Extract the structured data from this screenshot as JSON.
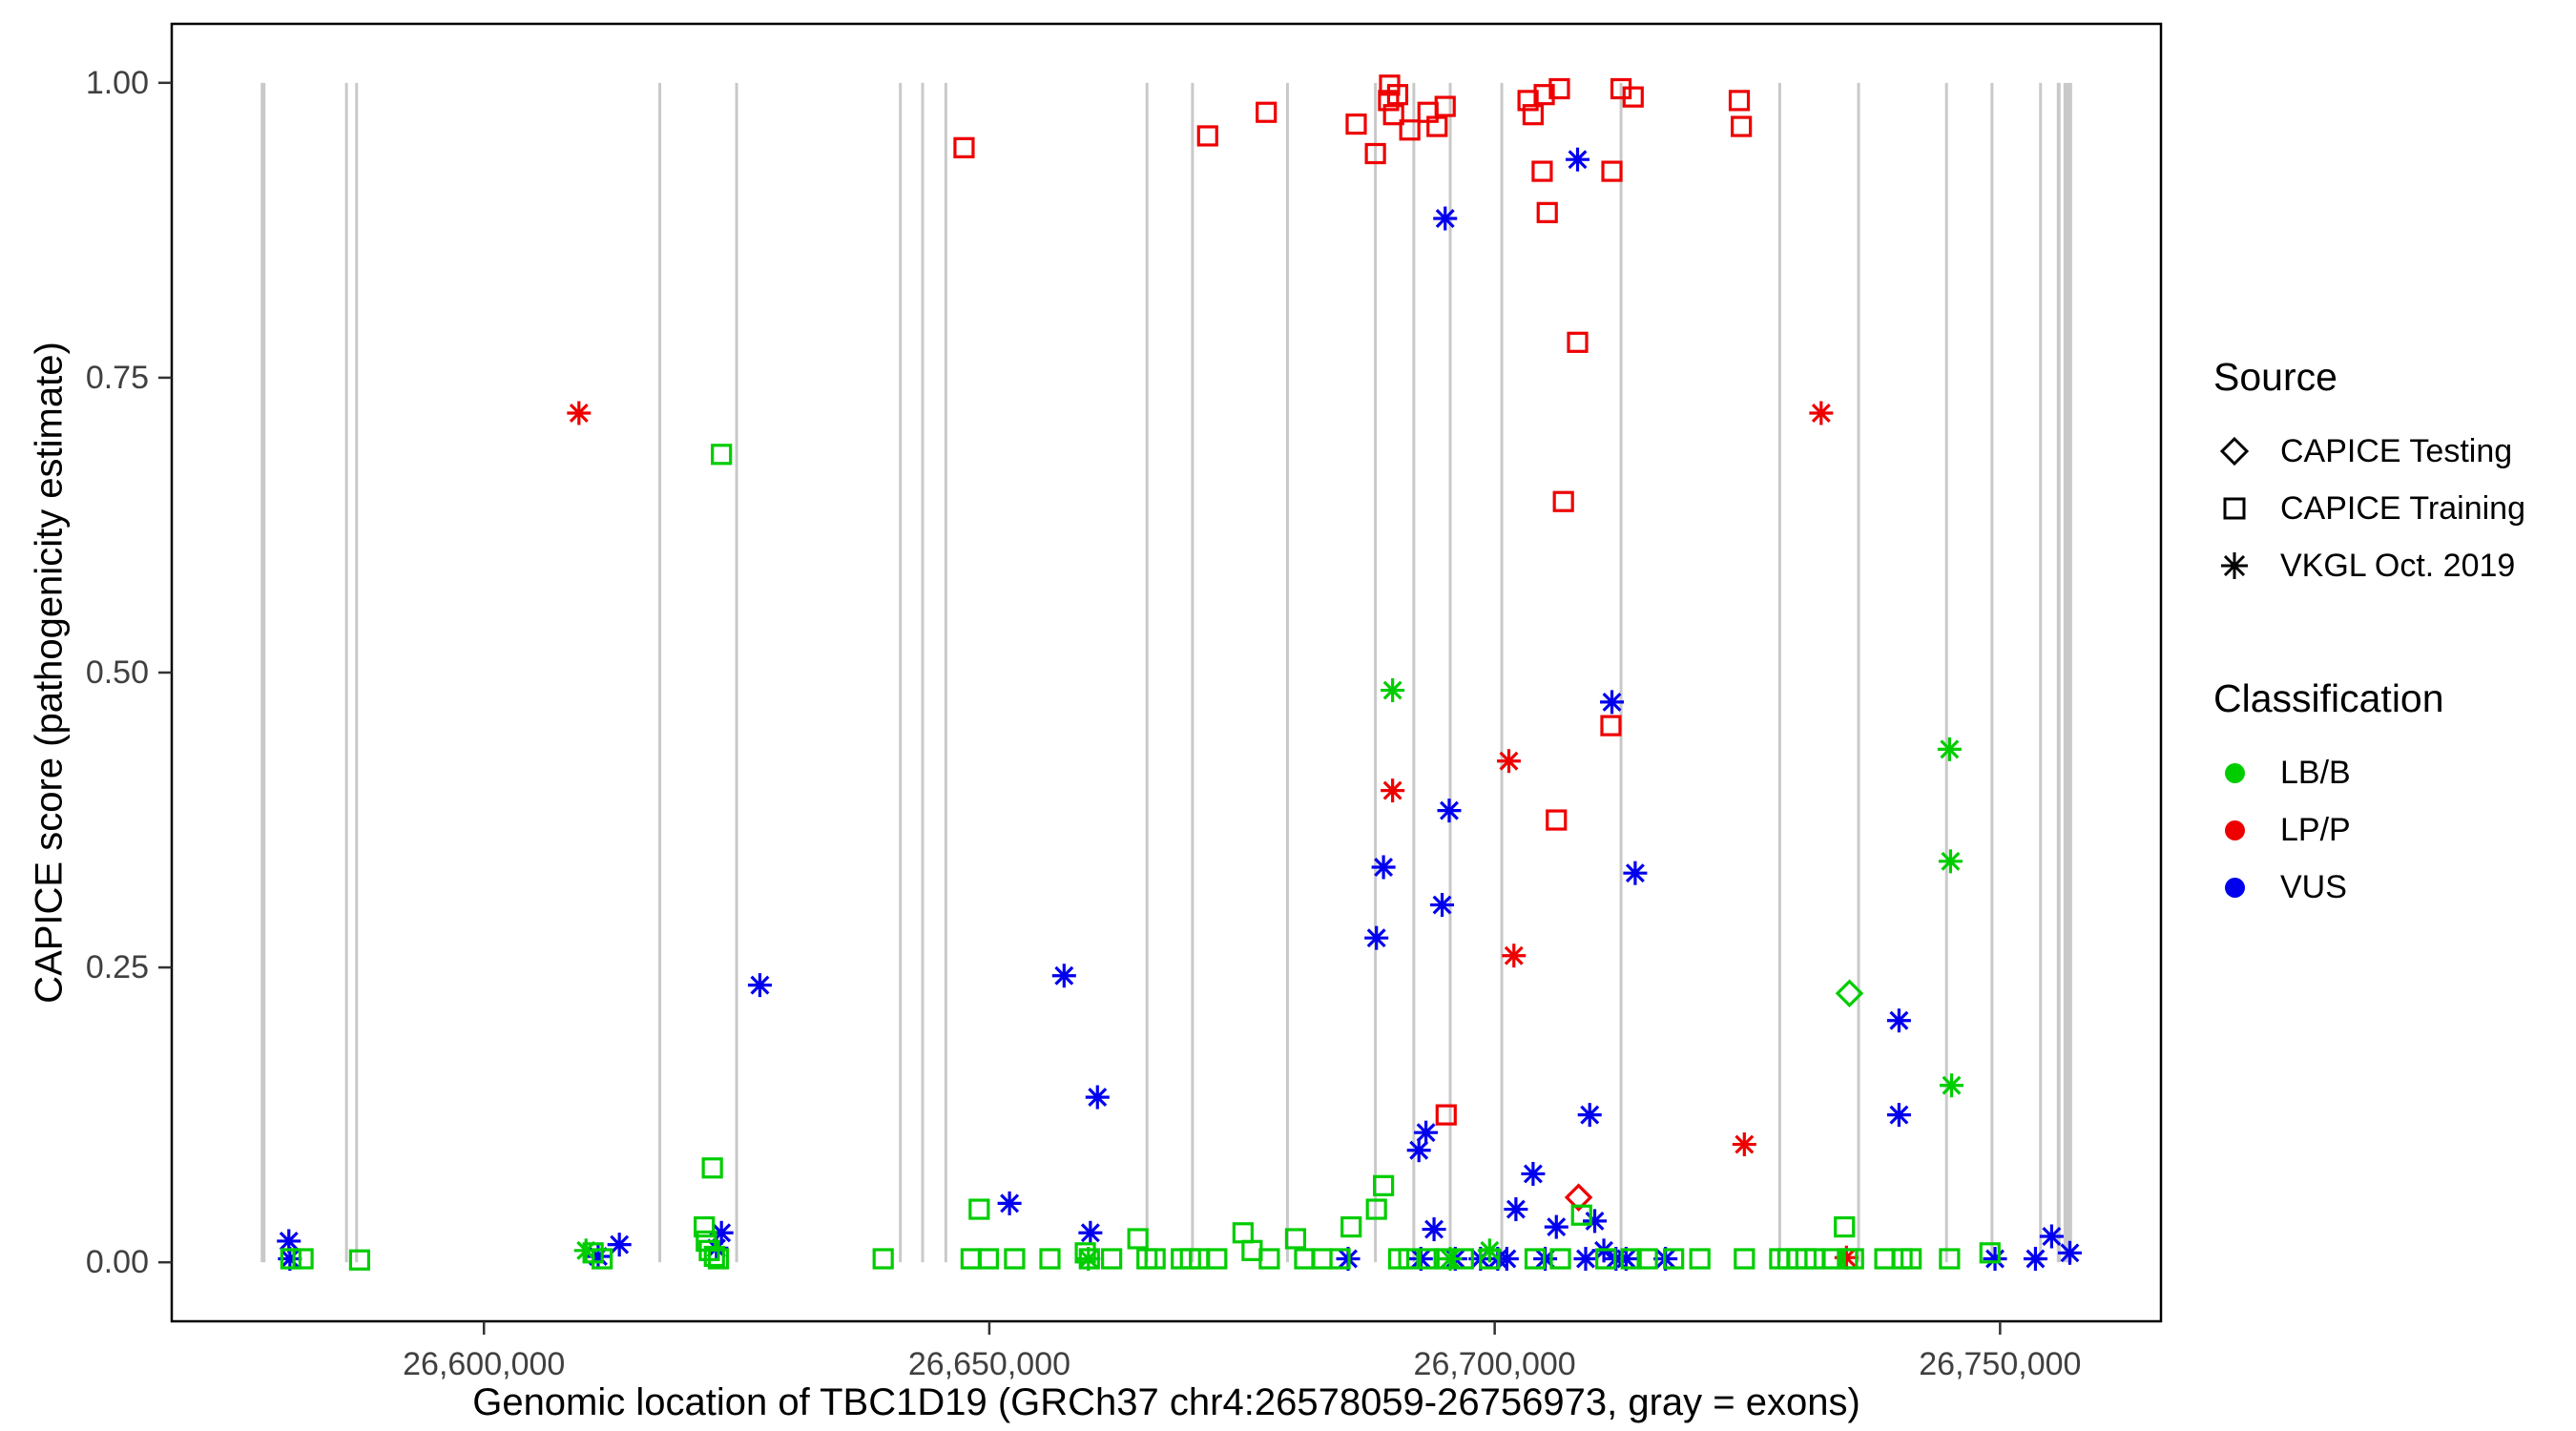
{
  "chart_data": {
    "type": "scatter",
    "title": "",
    "xlabel": "Genomic location of TBC1D19 (GRCh37 chr4:26578059-26756973, gray = exons)",
    "ylabel": "CAPICE score (pathogenicity estimate)",
    "xlim": [
      26569113,
      26765919
    ],
    "ylim": [
      -0.05,
      1.05
    ],
    "gene_region": {
      "chrom": "chr4",
      "start": 26578059,
      "end": 26756973,
      "build": "GRCh37",
      "gene": "TBC1D19"
    },
    "x_ticks": [
      {
        "value": 26600000,
        "label": "26,600,000"
      },
      {
        "value": 26650000,
        "label": "26,650,000"
      },
      {
        "value": 26700000,
        "label": "26,700,000"
      },
      {
        "value": 26750000,
        "label": "26,750,000"
      }
    ],
    "y_ticks": [
      {
        "value": 0.0,
        "label": "0.00"
      },
      {
        "value": 0.25,
        "label": "0.25"
      },
      {
        "value": 0.5,
        "label": "0.50"
      },
      {
        "value": 0.75,
        "label": "0.75"
      },
      {
        "value": 1.0,
        "label": "1.00"
      }
    ],
    "grid": false,
    "legend_position": "right",
    "exon_color": "#c9c9c9",
    "exons": [
      {
        "x": 26578150,
        "w": 5
      },
      {
        "x": 26586400,
        "w": 3
      },
      {
        "x": 26587400,
        "w": 3
      },
      {
        "x": 26617400,
        "w": 3
      },
      {
        "x": 26625000,
        "w": 3
      },
      {
        "x": 26641200,
        "w": 3
      },
      {
        "x": 26643400,
        "w": 3
      },
      {
        "x": 26645700,
        "w": 3
      },
      {
        "x": 26665600,
        "w": 3
      },
      {
        "x": 26670100,
        "w": 3
      },
      {
        "x": 26679500,
        "w": 3
      },
      {
        "x": 26688200,
        "w": 3
      },
      {
        "x": 26692000,
        "w": 3
      },
      {
        "x": 26695600,
        "w": 3
      },
      {
        "x": 26700700,
        "w": 3
      },
      {
        "x": 26712500,
        "w": 3
      },
      {
        "x": 26728200,
        "w": 3
      },
      {
        "x": 26736000,
        "w": 3
      },
      {
        "x": 26744700,
        "w": 3
      },
      {
        "x": 26749200,
        "w": 3
      },
      {
        "x": 26754000,
        "w": 3
      },
      {
        "x": 26755800,
        "w": 4
      },
      {
        "x": 26756700,
        "w": 9
      }
    ],
    "codes": {
      "sq": "CAPICE Training",
      "di": "CAPICE Testing",
      "as": "VKGL Oct. 2019",
      "B": "LB/B",
      "P": "LP/P",
      "V": "VUS"
    },
    "colors": {
      "B": "#00cd00",
      "P": "#ee0000",
      "V": "#0000ee"
    },
    "point_format": [
      "x",
      "y",
      "source_shape",
      "classification"
    ],
    "points": [
      [
        26647500,
        0.945,
        "sq",
        "P"
      ],
      [
        26671600,
        0.955,
        "sq",
        "P"
      ],
      [
        26677400,
        0.975,
        "sq",
        "P"
      ],
      [
        26686300,
        0.965,
        "sq",
        "P"
      ],
      [
        26688200,
        0.94,
        "sq",
        "P"
      ],
      [
        26689500,
        0.985,
        "sq",
        "P"
      ],
      [
        26689600,
        0.998,
        "sq",
        "P"
      ],
      [
        26690400,
        0.99,
        "sq",
        "P"
      ],
      [
        26690000,
        0.973,
        "sq",
        "P"
      ],
      [
        26691600,
        0.96,
        "sq",
        "P"
      ],
      [
        26693400,
        0.975,
        "sq",
        "P"
      ],
      [
        26695100,
        0.98,
        "sq",
        "P"
      ],
      [
        26694300,
        0.963,
        "sq",
        "P"
      ],
      [
        26703300,
        0.985,
        "sq",
        "P"
      ],
      [
        26704900,
        0.99,
        "sq",
        "P"
      ],
      [
        26703800,
        0.973,
        "sq",
        "P"
      ],
      [
        26706400,
        0.995,
        "sq",
        "P"
      ],
      [
        26704700,
        0.925,
        "sq",
        "P"
      ],
      [
        26705200,
        0.89,
        "sq",
        "P"
      ],
      [
        26711600,
        0.925,
        "sq",
        "P"
      ],
      [
        26712500,
        0.995,
        "sq",
        "P"
      ],
      [
        26713700,
        0.988,
        "sq",
        "P"
      ],
      [
        26724200,
        0.985,
        "sq",
        "P"
      ],
      [
        26724400,
        0.963,
        "sq",
        "P"
      ],
      [
        26708200,
        0.78,
        "sq",
        "P"
      ],
      [
        26706800,
        0.645,
        "sq",
        "P"
      ],
      [
        26711500,
        0.455,
        "sq",
        "P"
      ],
      [
        26706100,
        0.375,
        "sq",
        "P"
      ],
      [
        26695200,
        0.125,
        "sq",
        "P"
      ],
      [
        26609400,
        0.72,
        "as",
        "P"
      ],
      [
        26732300,
        0.72,
        "as",
        "P"
      ],
      [
        26689900,
        0.4,
        "as",
        "P"
      ],
      [
        26701400,
        0.425,
        "as",
        "P"
      ],
      [
        26701900,
        0.26,
        "as",
        "P"
      ],
      [
        26724700,
        0.1,
        "as",
        "P"
      ],
      [
        26734800,
        0.004,
        "as",
        "P"
      ],
      [
        26708300,
        0.055,
        "di",
        "P"
      ],
      [
        26695100,
        0.885,
        "as",
        "V"
      ],
      [
        26708200,
        0.935,
        "as",
        "V"
      ],
      [
        26627300,
        0.235,
        "as",
        "V"
      ],
      [
        26657400,
        0.243,
        "as",
        "V"
      ],
      [
        26660700,
        0.14,
        "as",
        "V"
      ],
      [
        26652000,
        0.05,
        "as",
        "V"
      ],
      [
        26689000,
        0.335,
        "as",
        "V"
      ],
      [
        26688300,
        0.275,
        "as",
        "V"
      ],
      [
        26695500,
        0.383,
        "as",
        "V"
      ],
      [
        26694800,
        0.303,
        "as",
        "V"
      ],
      [
        26711600,
        0.475,
        "as",
        "V"
      ],
      [
        26713900,
        0.33,
        "as",
        "V"
      ],
      [
        26709400,
        0.125,
        "as",
        "V"
      ],
      [
        26692500,
        0.095,
        "as",
        "V"
      ],
      [
        26693200,
        0.11,
        "as",
        "V"
      ],
      [
        26703800,
        0.075,
        "as",
        "V"
      ],
      [
        26702100,
        0.045,
        "as",
        "V"
      ],
      [
        26706100,
        0.03,
        "as",
        "V"
      ],
      [
        26709900,
        0.035,
        "as",
        "V"
      ],
      [
        26740000,
        0.205,
        "as",
        "V"
      ],
      [
        26740000,
        0.125,
        "as",
        "V"
      ],
      [
        26580700,
        0.018,
        "as",
        "V"
      ],
      [
        26580800,
        0.003,
        "as",
        "V"
      ],
      [
        26613400,
        0.015,
        "as",
        "V"
      ],
      [
        26623000,
        0.012,
        "as",
        "V"
      ],
      [
        26623500,
        0.025,
        "as",
        "V"
      ],
      [
        26660000,
        0.025,
        "as",
        "V"
      ],
      [
        26755100,
        0.022,
        "as",
        "V"
      ],
      [
        26756900,
        0.008,
        "as",
        "V"
      ],
      [
        26611300,
        0.005,
        "as",
        "V"
      ],
      [
        26685500,
        0.003,
        "as",
        "V"
      ],
      [
        26692700,
        0.003,
        "as",
        "V"
      ],
      [
        26694000,
        0.028,
        "as",
        "V"
      ],
      [
        26696100,
        0.003,
        "as",
        "V"
      ],
      [
        26698600,
        0.003,
        "as",
        "V"
      ],
      [
        26700300,
        0.003,
        "as",
        "V"
      ],
      [
        26701200,
        0.003,
        "as",
        "V"
      ],
      [
        26705000,
        0.003,
        "as",
        "V"
      ],
      [
        26709000,
        0.003,
        "as",
        "V"
      ],
      [
        26710800,
        0.01,
        "as",
        "V"
      ],
      [
        26712000,
        0.003,
        "as",
        "V"
      ],
      [
        26713000,
        0.003,
        "as",
        "V"
      ],
      [
        26716900,
        0.003,
        "as",
        "V"
      ],
      [
        26749500,
        0.003,
        "as",
        "V"
      ],
      [
        26753500,
        0.003,
        "as",
        "V"
      ],
      [
        26623500,
        0.685,
        "sq",
        "B"
      ],
      [
        26622600,
        0.08,
        "sq",
        "B"
      ],
      [
        26621800,
        0.03,
        "sq",
        "B"
      ],
      [
        26622000,
        0.018,
        "sq",
        "B"
      ],
      [
        26622300,
        0.01,
        "sq",
        "B"
      ],
      [
        26622800,
        0.005,
        "sq",
        "B"
      ],
      [
        26623200,
        0.003,
        "sq",
        "B"
      ],
      [
        26580900,
        0.003,
        "sq",
        "B"
      ],
      [
        26582100,
        0.003,
        "sq",
        "B"
      ],
      [
        26587700,
        0.002,
        "sq",
        "B"
      ],
      [
        26610800,
        0.008,
        "sq",
        "B"
      ],
      [
        26611700,
        0.003,
        "sq",
        "B"
      ],
      [
        26639500,
        0.003,
        "sq",
        "B"
      ],
      [
        26648200,
        0.003,
        "sq",
        "B"
      ],
      [
        26649000,
        0.045,
        "sq",
        "B"
      ],
      [
        26649900,
        0.003,
        "sq",
        "B"
      ],
      [
        26652500,
        0.003,
        "sq",
        "B"
      ],
      [
        26656000,
        0.003,
        "sq",
        "B"
      ],
      [
        26659500,
        0.008,
        "sq",
        "B"
      ],
      [
        26659900,
        0.003,
        "sq",
        "B"
      ],
      [
        26662100,
        0.003,
        "sq",
        "B"
      ],
      [
        26664700,
        0.02,
        "sq",
        "B"
      ],
      [
        26665600,
        0.003,
        "sq",
        "B"
      ],
      [
        26666400,
        0.003,
        "sq",
        "B"
      ],
      [
        26669000,
        0.003,
        "sq",
        "B"
      ],
      [
        26669900,
        0.003,
        "sq",
        "B"
      ],
      [
        26670800,
        0.003,
        "sq",
        "B"
      ],
      [
        26672500,
        0.003,
        "sq",
        "B"
      ],
      [
        26675100,
        0.025,
        "sq",
        "B"
      ],
      [
        26676000,
        0.01,
        "sq",
        "B"
      ],
      [
        26677700,
        0.003,
        "sq",
        "B"
      ],
      [
        26680300,
        0.02,
        "sq",
        "B"
      ],
      [
        26681200,
        0.003,
        "sq",
        "B"
      ],
      [
        26682900,
        0.003,
        "sq",
        "B"
      ],
      [
        26684700,
        0.003,
        "sq",
        "B"
      ],
      [
        26689000,
        0.065,
        "sq",
        "B"
      ],
      [
        26688300,
        0.045,
        "sq",
        "B"
      ],
      [
        26685800,
        0.03,
        "sq",
        "B"
      ],
      [
        26690500,
        0.003,
        "sq",
        "B"
      ],
      [
        26691500,
        0.003,
        "sq",
        "B"
      ],
      [
        26693500,
        0.003,
        "sq",
        "B"
      ],
      [
        26695000,
        0.003,
        "sq",
        "B"
      ],
      [
        26696900,
        0.003,
        "sq",
        "B"
      ],
      [
        26699500,
        0.003,
        "sq",
        "B"
      ],
      [
        26704000,
        0.003,
        "sq",
        "B"
      ],
      [
        26706500,
        0.003,
        "sq",
        "B"
      ],
      [
        26708600,
        0.04,
        "sq",
        "B"
      ],
      [
        26711000,
        0.003,
        "sq",
        "B"
      ],
      [
        26713500,
        0.003,
        "sq",
        "B"
      ],
      [
        26715100,
        0.003,
        "sq",
        "B"
      ],
      [
        26717700,
        0.003,
        "sq",
        "B"
      ],
      [
        26720300,
        0.003,
        "sq",
        "B"
      ],
      [
        26724700,
        0.003,
        "sq",
        "B"
      ],
      [
        26728200,
        0.003,
        "sq",
        "B"
      ],
      [
        26729000,
        0.003,
        "sq",
        "B"
      ],
      [
        26729900,
        0.003,
        "sq",
        "B"
      ],
      [
        26730800,
        0.003,
        "sq",
        "B"
      ],
      [
        26731700,
        0.003,
        "sq",
        "B"
      ],
      [
        26733400,
        0.003,
        "sq",
        "B"
      ],
      [
        26734600,
        0.03,
        "sq",
        "B"
      ],
      [
        26734900,
        0.003,
        "sq",
        "B"
      ],
      [
        26735500,
        0.003,
        "sq",
        "B"
      ],
      [
        26738600,
        0.003,
        "sq",
        "B"
      ],
      [
        26740300,
        0.003,
        "sq",
        "B"
      ],
      [
        26741200,
        0.003,
        "sq",
        "B"
      ],
      [
        26745000,
        0.003,
        "sq",
        "B"
      ],
      [
        26749000,
        0.008,
        "sq",
        "B"
      ],
      [
        26689900,
        0.485,
        "as",
        "B"
      ],
      [
        26745000,
        0.435,
        "as",
        "B"
      ],
      [
        26745100,
        0.34,
        "as",
        "B"
      ],
      [
        26745200,
        0.15,
        "as",
        "B"
      ],
      [
        26610100,
        0.01,
        "as",
        "B"
      ],
      [
        26659800,
        0.003,
        "as",
        "B"
      ],
      [
        26699500,
        0.01,
        "as",
        "B"
      ],
      [
        26695600,
        0.003,
        "as",
        "B"
      ],
      [
        26735100,
        0.228,
        "di",
        "B"
      ]
    ]
  },
  "axes": {
    "x_title": "Genomic location of TBC1D19 (GRCh37 chr4:26578059-26756973, gray = exons)",
    "y_title": "CAPICE score (pathogenicity estimate)"
  },
  "legend": {
    "source": {
      "title": "Source",
      "items": [
        {
          "label": "CAPICE Testing",
          "shape": "diamond"
        },
        {
          "label": "CAPICE Training",
          "shape": "square"
        },
        {
          "label": "VKGL Oct. 2019",
          "shape": "asterisk"
        }
      ]
    },
    "classification": {
      "title": "Classification",
      "items": [
        {
          "label": "LB/B",
          "color": "#00cd00"
        },
        {
          "label": "LP/P",
          "color": "#ee0000"
        },
        {
          "label": "VUS",
          "color": "#0000ee"
        }
      ]
    }
  }
}
